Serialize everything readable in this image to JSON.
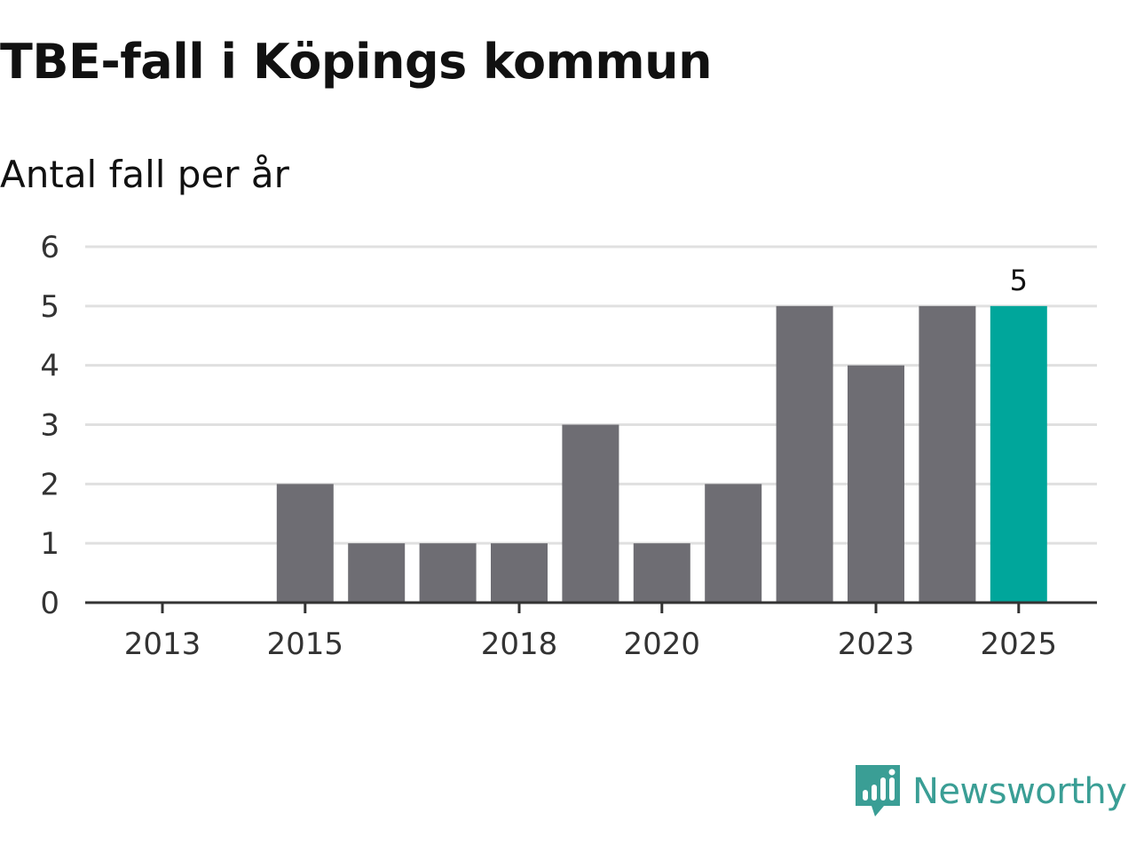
{
  "colors": {
    "bar": "#6e6d73",
    "highlight": "#00a69b",
    "grid": "#e0e0e0",
    "axis": "#333333",
    "brand": "#3a9e95"
  },
  "chart_data": {
    "type": "bar",
    "title": "TBE-fall i Köpings kommun",
    "subtitle": "Antal fall per år",
    "xlabel": "",
    "ylabel": "",
    "categories": [
      2013,
      2014,
      2015,
      2016,
      2017,
      2018,
      2019,
      2020,
      2021,
      2022,
      2023,
      2024,
      2025
    ],
    "values": [
      0,
      0,
      2,
      1,
      1,
      1,
      3,
      1,
      2,
      5,
      4,
      5,
      5
    ],
    "highlight_index": 12,
    "ylim": [
      0,
      6
    ],
    "yticks": [
      0,
      1,
      2,
      3,
      4,
      5,
      6
    ],
    "xticks": [
      2013,
      2015,
      2018,
      2020,
      2023,
      2025
    ],
    "annotation": {
      "category": 2025,
      "text": "5"
    },
    "grid": true
  },
  "brand": {
    "name": "Newsworthy",
    "icon": "newsworthy-logo-icon"
  }
}
